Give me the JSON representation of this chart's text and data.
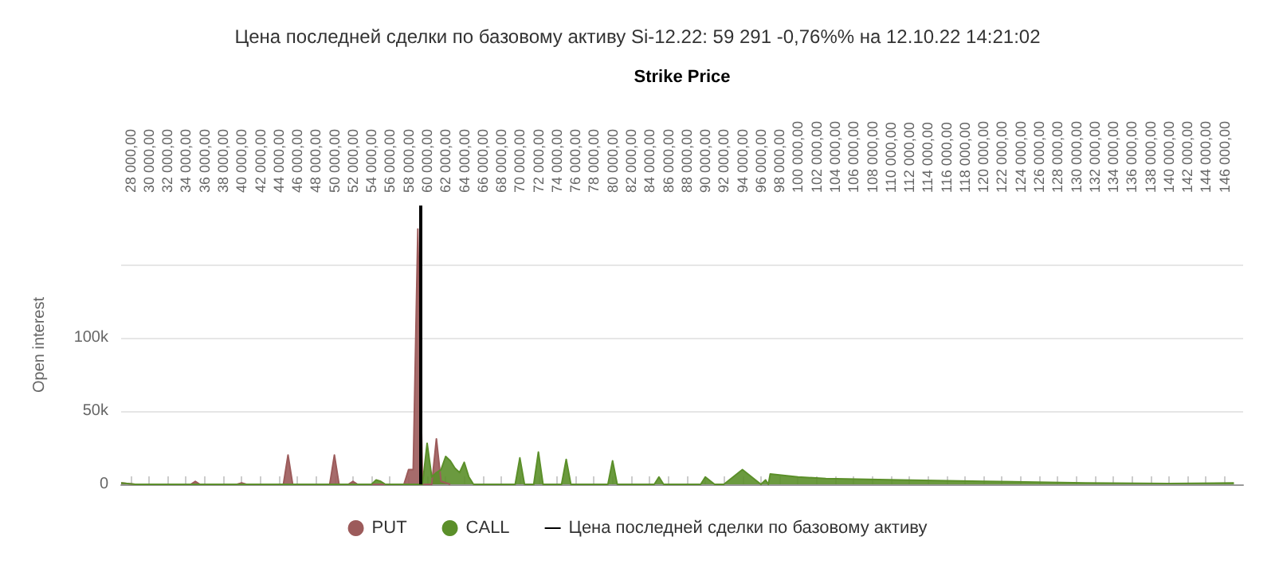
{
  "chart_data": {
    "type": "area",
    "title": "Цена последней сделки по базовому активу Si-12.22: 59 291 -0,76%% на 12.10.22 14:21:02",
    "xlabel": "Strike Price",
    "ylabel": "Open interest",
    "series": [
      {
        "name": "PUT",
        "color": "#9c5b5b",
        "x": [
          27000,
          28500,
          34500,
          35000,
          35500,
          39500,
          40000,
          40500,
          44500,
          45000,
          45500,
          49500,
          50000,
          50500,
          51500,
          52000,
          52500,
          57500,
          58000,
          58500,
          59000,
          59500,
          60500,
          61000,
          61500,
          62500
        ],
        "values": [
          1000,
          0,
          0,
          2000,
          0,
          0,
          1000,
          0,
          0,
          20000,
          0,
          0,
          20000,
          0,
          0,
          2000,
          0,
          0,
          10000,
          10000,
          174000,
          0,
          0,
          31000,
          2000,
          0
        ]
      },
      {
        "name": "CALL",
        "color": "#5b8f2a",
        "x": [
          27000,
          28500,
          54000,
          54500,
          55000,
          55500,
          59500,
          60000,
          60500,
          61000,
          61500,
          62000,
          62500,
          63000,
          63500,
          64000,
          64500,
          65000,
          69500,
          70000,
          70500,
          71500,
          72000,
          72500,
          74500,
          75000,
          75500,
          79500,
          80000,
          80500,
          84500,
          85000,
          85500,
          89500,
          90000,
          91000,
          92000,
          94000,
          96000,
          96500,
          96800,
          97000,
          100000,
          103000,
          111000,
          120000,
          131000,
          140000,
          147000
        ],
        "values": [
          1000,
          0,
          0,
          3000,
          2000,
          0,
          0,
          28000,
          5000,
          8000,
          10000,
          19000,
          16000,
          11000,
          8000,
          15000,
          5000,
          0,
          0,
          18000,
          0,
          0,
          22000,
          0,
          0,
          17000,
          0,
          0,
          16000,
          0,
          0,
          5000,
          0,
          0,
          5000,
          0,
          0,
          10000,
          0,
          3000,
          0,
          7000,
          5000,
          4000,
          3000,
          2000,
          1000,
          500,
          1000
        ]
      }
    ],
    "ref_lines": [
      {
        "axis": "x",
        "value": 59291,
        "label": "Цена последней сделки по базовому активу",
        "color": "#000000"
      }
    ],
    "xlim": [
      27000,
      148000
    ],
    "xticks": [
      {
        "value": 28000,
        "label": "28 000,00"
      },
      {
        "value": 30000,
        "label": "30 000,00"
      },
      {
        "value": 32000,
        "label": "32 000,00"
      },
      {
        "value": 34000,
        "label": "34 000,00"
      },
      {
        "value": 36000,
        "label": "36 000,00"
      },
      {
        "value": 38000,
        "label": "38 000,00"
      },
      {
        "value": 40000,
        "label": "40 000,00"
      },
      {
        "value": 42000,
        "label": "42 000,00"
      },
      {
        "value": 44000,
        "label": "44 000,00"
      },
      {
        "value": 46000,
        "label": "46 000,00"
      },
      {
        "value": 48000,
        "label": "48 000,00"
      },
      {
        "value": 50000,
        "label": "50 000,00"
      },
      {
        "value": 52000,
        "label": "52 000,00"
      },
      {
        "value": 54000,
        "label": "54 000,00"
      },
      {
        "value": 56000,
        "label": "56 000,00"
      },
      {
        "value": 58000,
        "label": "58 000,00"
      },
      {
        "value": 60000,
        "label": "60 000,00"
      },
      {
        "value": 62000,
        "label": "62 000,00"
      },
      {
        "value": 64000,
        "label": "64 000,00"
      },
      {
        "value": 66000,
        "label": "66 000,00"
      },
      {
        "value": 68000,
        "label": "68 000,00"
      },
      {
        "value": 70000,
        "label": "70 000,00"
      },
      {
        "value": 72000,
        "label": "72 000,00"
      },
      {
        "value": 74000,
        "label": "74 000,00"
      },
      {
        "value": 76000,
        "label": "76 000,00"
      },
      {
        "value": 78000,
        "label": "78 000,00"
      },
      {
        "value": 80000,
        "label": "80 000,00"
      },
      {
        "value": 82000,
        "label": "82 000,00"
      },
      {
        "value": 84000,
        "label": "84 000,00"
      },
      {
        "value": 86000,
        "label": "86 000,00"
      },
      {
        "value": 88000,
        "label": "88 000,00"
      },
      {
        "value": 90000,
        "label": "90 000,00"
      },
      {
        "value": 92000,
        "label": "92 000,00"
      },
      {
        "value": 94000,
        "label": "94 000,00"
      },
      {
        "value": 96000,
        "label": "96 000,00"
      },
      {
        "value": 98000,
        "label": "98 000,00"
      },
      {
        "value": 100000,
        "label": "100 000,00"
      },
      {
        "value": 102000,
        "label": "102 000,00"
      },
      {
        "value": 104000,
        "label": "104 000,00"
      },
      {
        "value": 106000,
        "label": "106 000,00"
      },
      {
        "value": 108000,
        "label": "108 000,00"
      },
      {
        "value": 110000,
        "label": "110 000,00"
      },
      {
        "value": 112000,
        "label": "112 000,00"
      },
      {
        "value": 114000,
        "label": "114 000,00"
      },
      {
        "value": 116000,
        "label": "116 000,00"
      },
      {
        "value": 118000,
        "label": "118 000,00"
      },
      {
        "value": 120000,
        "label": "120 000,00"
      },
      {
        "value": 122000,
        "label": "122 000,00"
      },
      {
        "value": 124000,
        "label": "124 000,00"
      },
      {
        "value": 126000,
        "label": "126 000,00"
      },
      {
        "value": 128000,
        "label": "128 000,00"
      },
      {
        "value": 130000,
        "label": "130 000,00"
      },
      {
        "value": 132000,
        "label": "132 000,00"
      },
      {
        "value": 134000,
        "label": "134 000,00"
      },
      {
        "value": 136000,
        "label": "136 000,00"
      },
      {
        "value": 138000,
        "label": "138 000,00"
      },
      {
        "value": 140000,
        "label": "140 000,00"
      },
      {
        "value": 142000,
        "label": "142 000,00"
      },
      {
        "value": 144000,
        "label": "144 000,00"
      },
      {
        "value": 146000,
        "label": "146 000,00"
      }
    ],
    "ylim": [
      0,
      190000
    ],
    "yticks": [
      0,
      {
        "value": 50000,
        "label": "50k"
      },
      {
        "value": 100000,
        "label": "100k"
      },
      {
        "value": 150000,
        "label": null
      }
    ],
    "grid": "y",
    "legend": "bottom",
    "marker": "none"
  }
}
